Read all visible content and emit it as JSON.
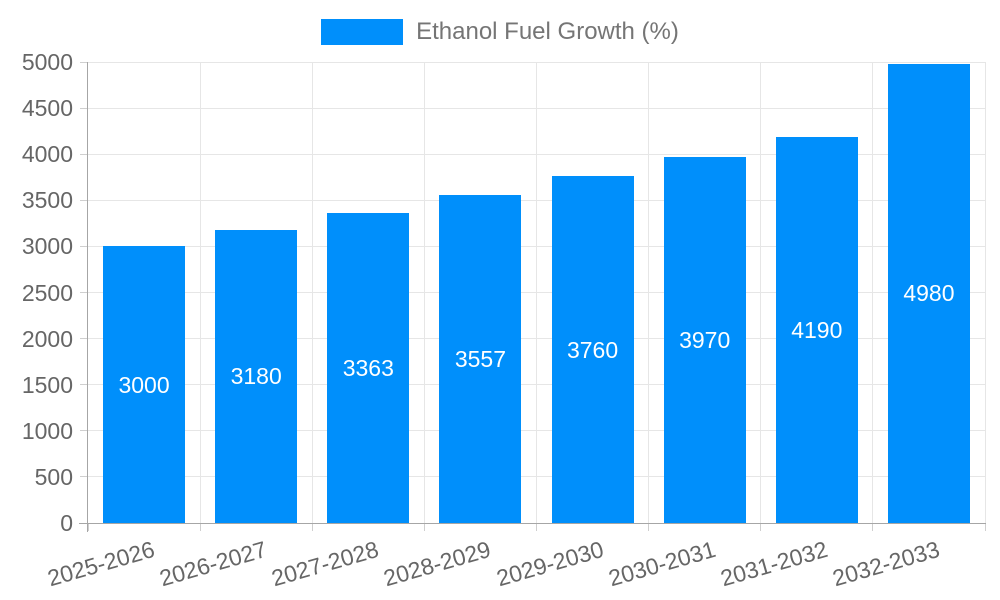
{
  "chart_data": {
    "type": "bar",
    "title": "",
    "xlabel": "",
    "ylabel": "",
    "legend": {
      "label": "Ethanol Fuel Growth (%)",
      "position": "top"
    },
    "categories": [
      "2025-2026",
      "2026-2027",
      "2027-2028",
      "2028-2029",
      "2029-2030",
      "2030-2031",
      "2031-2032",
      "2032-2033"
    ],
    "series": [
      {
        "name": "Ethanol Fuel Growth (%)",
        "values": [
          3000,
          3180,
          3363,
          3557,
          3760,
          3970,
          4190,
          4980
        ]
      }
    ],
    "data_labels_shown": true,
    "ylim": [
      0,
      5000
    ],
    "yticks": [
      0,
      500,
      1000,
      1500,
      2000,
      2500,
      3000,
      3500,
      4000,
      4500,
      5000
    ],
    "grid": true,
    "colors": {
      "bar": "#008FFB",
      "background": "#FFFFFF",
      "gridline": "#E6E6E6",
      "tick": "#CFCFCF",
      "axis_line": "#A6A6A6",
      "axis_text": "#666666",
      "legend_text": "#757575",
      "data_label": "#FFFFFF"
    }
  }
}
